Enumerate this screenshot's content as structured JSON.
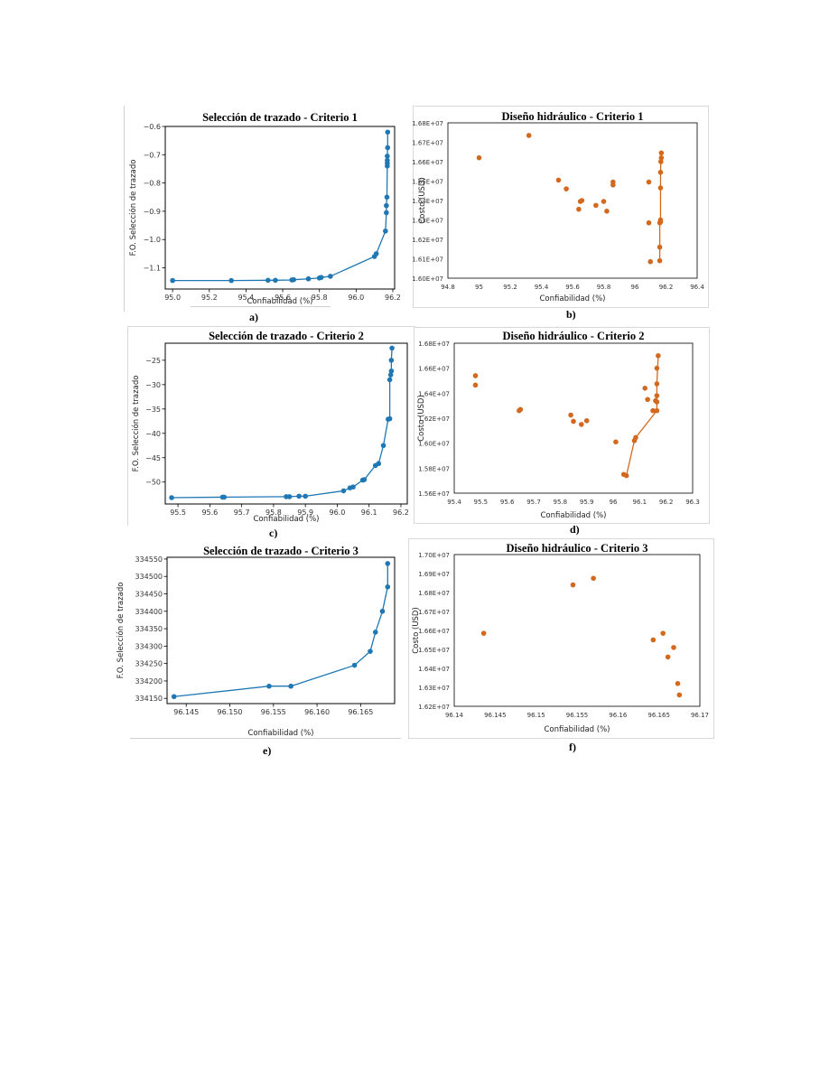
{
  "colors": {
    "blue": "#1f77b4",
    "orange": "#d2691e",
    "axis": "#000000"
  },
  "chart_data": [
    {
      "id": "a",
      "type": "line",
      "title": "Selección de trazado - Criterio 1",
      "xlabel": "Confiabilidad (%)",
      "ylabel": "F.O. Selección de trazado",
      "xlim": [
        94.96,
        96.21
      ],
      "ylim": [
        -1.175,
        -0.6
      ],
      "xticks": [
        95.0,
        95.2,
        95.4,
        95.6,
        95.8,
        96.0,
        96.2
      ],
      "xtick_labels": [
        "95.0",
        "95.2",
        "95.4",
        "95.6",
        "95.8",
        "96.0",
        "96.2"
      ],
      "yticks": [
        -1.1,
        -1.0,
        -0.9,
        -0.8,
        -0.7,
        -0.6
      ],
      "ytick_labels": [
        "−1.1",
        "−1.0",
        "−0.9",
        "−0.8",
        "−0.7",
        "−0.6"
      ],
      "color": "blue",
      "sublabel": "a)",
      "series": [
        {
          "x": [
            95.0,
            95.32,
            95.52,
            95.56,
            95.65,
            95.66,
            95.74,
            95.8,
            95.81,
            95.86,
            96.1,
            96.11,
            96.16,
            96.165,
            96.165,
            96.168,
            96.17,
            96.17,
            96.17,
            96.17,
            96.172,
            96.172
          ],
          "y": [
            -1.145,
            -1.145,
            -1.144,
            -1.144,
            -1.143,
            -1.142,
            -1.139,
            -1.136,
            -1.134,
            -1.13,
            -1.06,
            -1.05,
            -0.97,
            -0.905,
            -0.88,
            -0.85,
            -0.74,
            -0.73,
            -0.72,
            -0.705,
            -0.675,
            -0.62
          ]
        }
      ]
    },
    {
      "id": "b",
      "type": "scatter",
      "title": "Diseño hidráulico - Criterio 1",
      "xlabel": "Confiabilidad (%)",
      "ylabel": "Costo (USD)",
      "xlim": [
        94.8,
        96.4
      ],
      "ylim": [
        16000000,
        16800000
      ],
      "xticks": [
        94.8,
        95.0,
        95.2,
        95.4,
        95.6,
        95.8,
        96.0,
        96.2,
        96.4
      ],
      "xtick_labels": [
        "94.8",
        "95",
        "95.2",
        "95.4",
        "95.6",
        "95.8",
        "96",
        "96.2",
        "96.4"
      ],
      "yticks": [
        16000000,
        16100000,
        16200000,
        16300000,
        16400000,
        16500000,
        16600000,
        16700000,
        16800000
      ],
      "ytick_labels": [
        "1.60E+07",
        "1.61E+07",
        "1.62E+07",
        "1.63E+07",
        "1.64E+07",
        "1.65E+07",
        "1.66E+07",
        "1.67E+07",
        "1.68E+07"
      ],
      "color": "orange",
      "sublabel": "b)",
      "boxed": true,
      "series": [
        {
          "points": [
            [
              95.0,
              16620000
            ],
            [
              95.32,
              16735000
            ],
            [
              95.51,
              16505000
            ],
            [
              95.56,
              16460000
            ],
            [
              95.64,
              16355000
            ],
            [
              95.65,
              16395000
            ],
            [
              95.66,
              16400000
            ],
            [
              95.75,
              16375000
            ],
            [
              95.8,
              16395000
            ],
            [
              95.82,
              16345000
            ],
            [
              95.86,
              16495000
            ],
            [
              95.86,
              16480000
            ],
            [
              96.09,
              16495000
            ],
            [
              96.09,
              16285000
            ],
            [
              96.1,
              16085000
            ]
          ]
        },
        {
          "line": true,
          "x": [
            96.16,
            96.16,
            96.16,
            96.165,
            96.165,
            96.165,
            96.165,
            96.167,
            96.17,
            96.17
          ],
          "y": [
            16090000,
            16160000,
            16285000,
            16290000,
            16300000,
            16465000,
            16545000,
            16600000,
            16620000,
            16645000
          ]
        }
      ]
    },
    {
      "id": "c",
      "type": "line",
      "title": "Selección de trazado - Criterio 2",
      "xlabel": "Confiabilidad (%)",
      "ylabel": "F.O. Selección de trazado",
      "xlim": [
        95.46,
        96.22
      ],
      "ylim": [
        -54.5,
        -21.5
      ],
      "xticks": [
        95.5,
        95.6,
        95.7,
        95.8,
        95.9,
        96.0,
        96.1,
        96.2
      ],
      "xtick_labels": [
        "95.5",
        "95.6",
        "95.7",
        "95.8",
        "95.9",
        "96.0",
        "96.1",
        "96.2"
      ],
      "yticks": [
        -50,
        -45,
        -40,
        -35,
        -30,
        -25
      ],
      "ytick_labels": [
        "−50",
        "−45",
        "−40",
        "−35",
        "−30",
        "−25"
      ],
      "color": "blue",
      "sublabel": "c)",
      "series": [
        {
          "x": [
            95.48,
            95.64,
            95.645,
            95.84,
            95.85,
            95.88,
            95.9,
            96.02,
            96.04,
            96.05,
            96.08,
            96.085,
            96.12,
            96.13,
            96.145,
            96.16,
            96.165,
            96.165,
            96.168,
            96.17,
            96.17,
            96.172
          ],
          "y": [
            -53.2,
            -53.1,
            -53.1,
            -53.0,
            -53.0,
            -52.9,
            -52.9,
            -51.8,
            -51.2,
            -51.0,
            -49.6,
            -49.5,
            -46.6,
            -46.2,
            -42.5,
            -37.1,
            -37.0,
            -29.0,
            -28.0,
            -27.2,
            -25.0,
            -22.5
          ]
        }
      ]
    },
    {
      "id": "d",
      "type": "scatter",
      "title": "Diseño hidráulico - Criterio 2",
      "xlabel": "Confiabilidad (%)",
      "ylabel": "Costo (USD)",
      "xlim": [
        95.4,
        96.3
      ],
      "ylim": [
        15600000,
        16800000
      ],
      "xticks": [
        95.4,
        95.5,
        95.6,
        95.7,
        95.8,
        95.9,
        96.0,
        96.1,
        96.2,
        96.3
      ],
      "xtick_labels": [
        "95.4",
        "95.5",
        "95.6",
        "95.7",
        "95.8",
        "95.9",
        "96",
        "96.1",
        "96.2",
        "96.3"
      ],
      "yticks": [
        15600000,
        15800000,
        16000000,
        16200000,
        16400000,
        16600000,
        16800000
      ],
      "ytick_labels": [
        "1.56E+07",
        "1.58E+07",
        "1.60E+07",
        "1.62E+07",
        "1.64E+07",
        "1.66E+07",
        "1.68E+07"
      ],
      "color": "orange",
      "sublabel": "d)",
      "boxed": true,
      "series": [
        {
          "points": [
            [
              95.48,
              16540000
            ],
            [
              95.48,
              16465000
            ],
            [
              95.645,
              16260000
            ],
            [
              95.65,
              16270000
            ],
            [
              95.84,
              16225000
            ],
            [
              95.85,
              16175000
            ],
            [
              95.88,
              16150000
            ],
            [
              95.9,
              16180000
            ],
            [
              96.01,
              16010000
            ],
            [
              96.12,
              16440000
            ],
            [
              96.13,
              16350000
            ],
            [
              96.15,
              16260000
            ],
            [
              96.16,
              16340000
            ],
            [
              96.165,
              16380000
            ],
            [
              96.165,
              16600000
            ]
          ]
        },
        {
          "line": true,
          "x": [
            96.04,
            96.05,
            96.08,
            96.085,
            96.165,
            96.165,
            96.165,
            96.17
          ],
          "y": [
            15750000,
            15740000,
            16020000,
            16045000,
            16260000,
            16330000,
            16475000,
            16700000
          ]
        }
      ]
    },
    {
      "id": "e",
      "type": "line",
      "title": "Selección de trazado - Criterio 3",
      "xlabel": "Confiabilidad (%)",
      "ylabel": "F.O. Selección de trazado",
      "xlim": [
        96.1428,
        96.1689
      ],
      "ylim": [
        334135,
        334555
      ],
      "xticks": [
        96.145,
        96.15,
        96.155,
        96.16,
        96.165
      ],
      "xtick_labels": [
        "96.145",
        "96.150",
        "96.155",
        "96.160",
        "96.165"
      ],
      "yticks": [
        334150,
        334200,
        334250,
        334300,
        334350,
        334400,
        334450,
        334500,
        334550
      ],
      "ytick_labels": [
        "334150",
        "334200",
        "334250",
        "334300",
        "334350",
        "334400",
        "334450",
        "334500",
        "334550"
      ],
      "color": "blue",
      "sublabel": "e)",
      "series": [
        {
          "x": [
            96.1436,
            96.1545,
            96.157,
            96.1643,
            96.1661,
            96.1667,
            96.1675,
            96.1681,
            96.1681
          ],
          "y": [
            334155,
            334185,
            334185,
            334245,
            334285,
            334340,
            334400,
            334470,
            334537
          ]
        }
      ]
    },
    {
      "id": "f",
      "type": "scatter",
      "title": "Diseño hidráulico - Criterio 3",
      "xlabel": "Confiabilidad (%)",
      "ylabel": "Costo (USD)",
      "xlim": [
        96.14,
        96.17
      ],
      "ylim": [
        16200000,
        17000000
      ],
      "xticks": [
        96.14,
        96.145,
        96.15,
        96.155,
        96.16,
        96.165,
        96.17
      ],
      "xtick_labels": [
        "96.14",
        "96.145",
        "96.15",
        "96.155",
        "96.16",
        "96.165",
        "96.17"
      ],
      "yticks": [
        16200000,
        16300000,
        16400000,
        16500000,
        16600000,
        16700000,
        16800000,
        16900000,
        17000000
      ],
      "ytick_labels": [
        "1.62E+07",
        "1.63E+07",
        "1.64E+07",
        "1.65E+07",
        "1.66E+07",
        "1.67E+07",
        "1.68E+07",
        "1.69E+07",
        "1.70E+07"
      ],
      "color": "orange",
      "sublabel": "f)",
      "boxed": true,
      "series": [
        {
          "points": [
            [
              96.1436,
              16585000
            ],
            [
              96.1545,
              16840000
            ],
            [
              96.157,
              16875000
            ],
            [
              96.1643,
              16550000
            ],
            [
              96.1655,
              16585000
            ],
            [
              96.1661,
              16460000
            ],
            [
              96.1668,
              16510000
            ],
            [
              96.1673,
              16320000
            ],
            [
              96.1675,
              16260000
            ]
          ]
        }
      ]
    }
  ]
}
